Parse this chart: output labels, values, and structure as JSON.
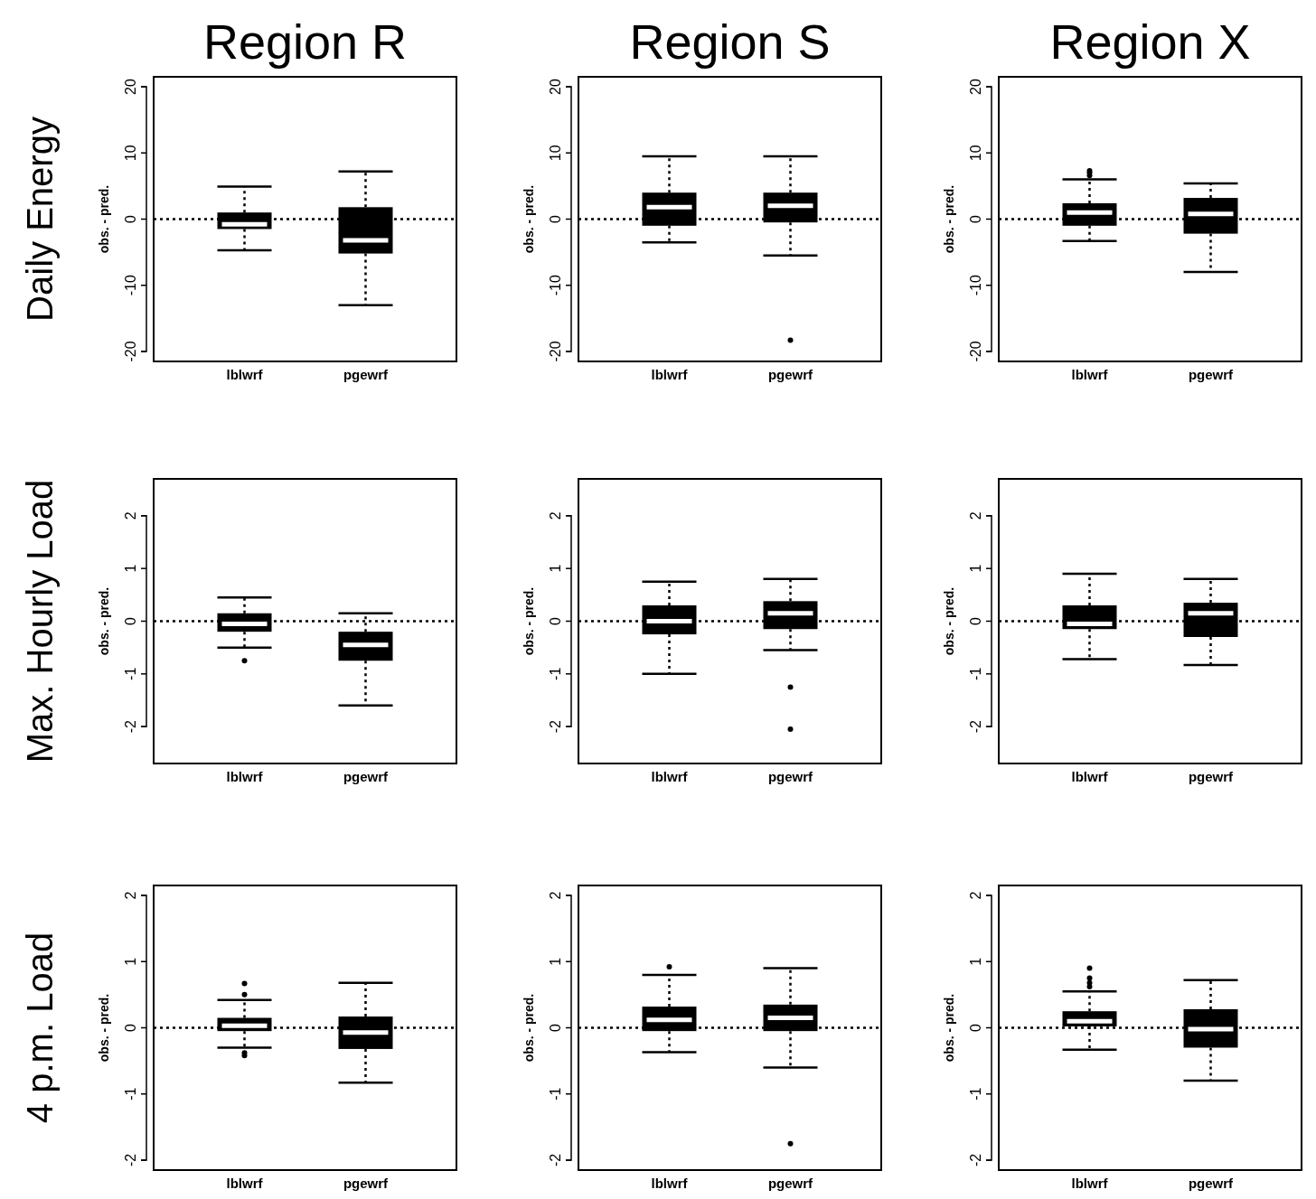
{
  "chart_data": [
    {
      "type": "box",
      "title": "Region R",
      "annotations": [
        "Daily Energy"
      ],
      "ylabel": "obs. - pred.",
      "categories": [
        "lblwrf",
        "pgewrf"
      ],
      "color": "#000000",
      "ylim": [
        -21.5,
        21.5
      ],
      "yticks": [
        -20,
        -10,
        0,
        10,
        20
      ],
      "ref_lines": [
        {
          "axis": "y",
          "value": 0,
          "line_style": "dotted"
        }
      ],
      "boxes": [
        {
          "low": -4.7,
          "q1": -1.5,
          "median": -0.8,
          "q3": 1.0,
          "high": 4.9
        },
        {
          "low": -13,
          "q1": -5.2,
          "median": -3.2,
          "q3": 1.8,
          "high": 7.2
        }
      ]
    },
    {
      "type": "box",
      "title": "Region S",
      "ylabel": "obs. - pred.",
      "categories": [
        "lblwrf",
        "pgewrf"
      ],
      "color": "#000000",
      "ylim": [
        -21.5,
        21.5
      ],
      "yticks": [
        -20,
        -10,
        0,
        10,
        20
      ],
      "ref_lines": [
        {
          "axis": "y",
          "value": 0,
          "line_style": "dotted"
        }
      ],
      "boxes": [
        {
          "low": -3.5,
          "q1": -1,
          "median": 1.8,
          "q3": 4,
          "high": 9.5
        },
        {
          "low": -5.5,
          "q1": -0.5,
          "median": 2,
          "q3": 4,
          "high": 9.5,
          "outliers": [
            -18.3
          ]
        }
      ]
    },
    {
      "type": "box",
      "title": "Region X",
      "ylabel": "obs. - pred.",
      "categories": [
        "lblwrf",
        "pgewrf"
      ],
      "color": "#000000",
      "ylim": [
        -21.5,
        21.5
      ],
      "yticks": [
        -20,
        -10,
        0,
        10,
        20
      ],
      "ref_lines": [
        {
          "axis": "y",
          "value": 0,
          "line_style": "dotted"
        }
      ],
      "boxes": [
        {
          "low": -3.3,
          "q1": -1,
          "median": 1,
          "q3": 2.4,
          "high": 6,
          "outliers": [
            6.6,
            7.0,
            7.3
          ]
        },
        {
          "low": -8,
          "q1": -2.2,
          "median": 0.8,
          "q3": 3.2,
          "high": 5.4
        }
      ]
    },
    {
      "type": "box",
      "annotations": [
        "Max. Hourly Load"
      ],
      "ylabel": "obs. - pred.",
      "categories": [
        "lblwrf",
        "pgewrf"
      ],
      "color": "#000000",
      "ylim": [
        -2.7,
        2.7
      ],
      "yticks": [
        -2,
        -1,
        0,
        1,
        2
      ],
      "ref_lines": [
        {
          "axis": "y",
          "value": 0,
          "line_style": "dotted"
        }
      ],
      "boxes": [
        {
          "low": -0.5,
          "q1": -0.2,
          "median": -0.05,
          "q3": 0.15,
          "high": 0.45,
          "outliers": [
            -0.75
          ]
        },
        {
          "low": -1.6,
          "q1": -0.75,
          "median": -0.45,
          "q3": -0.2,
          "high": 0.15
        }
      ]
    },
    {
      "type": "box",
      "ylabel": "obs. - pred.",
      "categories": [
        "lblwrf",
        "pgewrf"
      ],
      "color": "#000000",
      "ylim": [
        -2.7,
        2.7
      ],
      "yticks": [
        -2,
        -1,
        0,
        1,
        2
      ],
      "ref_lines": [
        {
          "axis": "y",
          "value": 0,
          "line_style": "dotted"
        }
      ],
      "boxes": [
        {
          "low": -1,
          "q1": -0.25,
          "median": 0.0,
          "q3": 0.3,
          "high": 0.75
        },
        {
          "low": -0.55,
          "q1": -0.15,
          "median": 0.15,
          "q3": 0.38,
          "high": 0.8,
          "outliers": [
            -1.25,
            -2.05
          ]
        }
      ]
    },
    {
      "type": "box",
      "ylabel": "obs. - pred.",
      "categories": [
        "lblwrf",
        "pgewrf"
      ],
      "color": "#000000",
      "ylim": [
        -2.7,
        2.7
      ],
      "yticks": [
        -2,
        -1,
        0,
        1,
        2
      ],
      "ref_lines": [
        {
          "axis": "y",
          "value": 0,
          "line_style": "dotted"
        }
      ],
      "boxes": [
        {
          "low": -0.72,
          "q1": -0.15,
          "median": -0.05,
          "q3": 0.3,
          "high": 0.9
        },
        {
          "low": -0.83,
          "q1": -0.3,
          "median": 0.15,
          "q3": 0.35,
          "high": 0.8
        }
      ]
    },
    {
      "type": "box",
      "annotations": [
        "4 p.m. Load"
      ],
      "ylabel": "obs. - pred.",
      "categories": [
        "lblwrf",
        "pgewrf"
      ],
      "color": "#000000",
      "ylim": [
        -2.15,
        2.15
      ],
      "yticks": [
        -2,
        -1,
        0,
        1,
        2
      ],
      "ref_lines": [
        {
          "axis": "y",
          "value": 0,
          "line_style": "dotted"
        }
      ],
      "boxes": [
        {
          "low": -0.3,
          "q1": -0.05,
          "median": 0.03,
          "q3": 0.15,
          "high": 0.42,
          "outliers": [
            0.5,
            0.67,
            -0.38,
            -0.42
          ]
        },
        {
          "low": -0.83,
          "q1": -0.32,
          "median": -0.07,
          "q3": 0.17,
          "high": 0.68
        }
      ]
    },
    {
      "type": "box",
      "ylabel": "obs. - pred.",
      "categories": [
        "lblwrf",
        "pgewrf"
      ],
      "color": "#000000",
      "ylim": [
        -2.15,
        2.15
      ],
      "yticks": [
        -2,
        -1,
        0,
        1,
        2
      ],
      "ref_lines": [
        {
          "axis": "y",
          "value": 0,
          "line_style": "dotted"
        }
      ],
      "boxes": [
        {
          "low": -0.37,
          "q1": -0.05,
          "median": 0.12,
          "q3": 0.32,
          "high": 0.8,
          "outliers": [
            0.92
          ]
        },
        {
          "low": -0.6,
          "q1": -0.05,
          "median": 0.15,
          "q3": 0.35,
          "high": 0.9,
          "outliers": [
            -1.75
          ]
        }
      ]
    },
    {
      "type": "box",
      "ylabel": "obs. - pred.",
      "categories": [
        "lblwrf",
        "pgewrf"
      ],
      "color": "#000000",
      "ylim": [
        -2.15,
        2.15
      ],
      "yticks": [
        -2,
        -1,
        0,
        1,
        2
      ],
      "ref_lines": [
        {
          "axis": "y",
          "value": 0,
          "line_style": "dotted"
        }
      ],
      "boxes": [
        {
          "low": -0.33,
          "q1": 0.02,
          "median": 0.1,
          "q3": 0.25,
          "high": 0.55,
          "outliers": [
            0.62,
            0.68,
            0.75,
            0.9
          ]
        },
        {
          "low": -0.8,
          "q1": -0.3,
          "median": -0.02,
          "q3": 0.28,
          "high": 0.72
        }
      ]
    }
  ]
}
